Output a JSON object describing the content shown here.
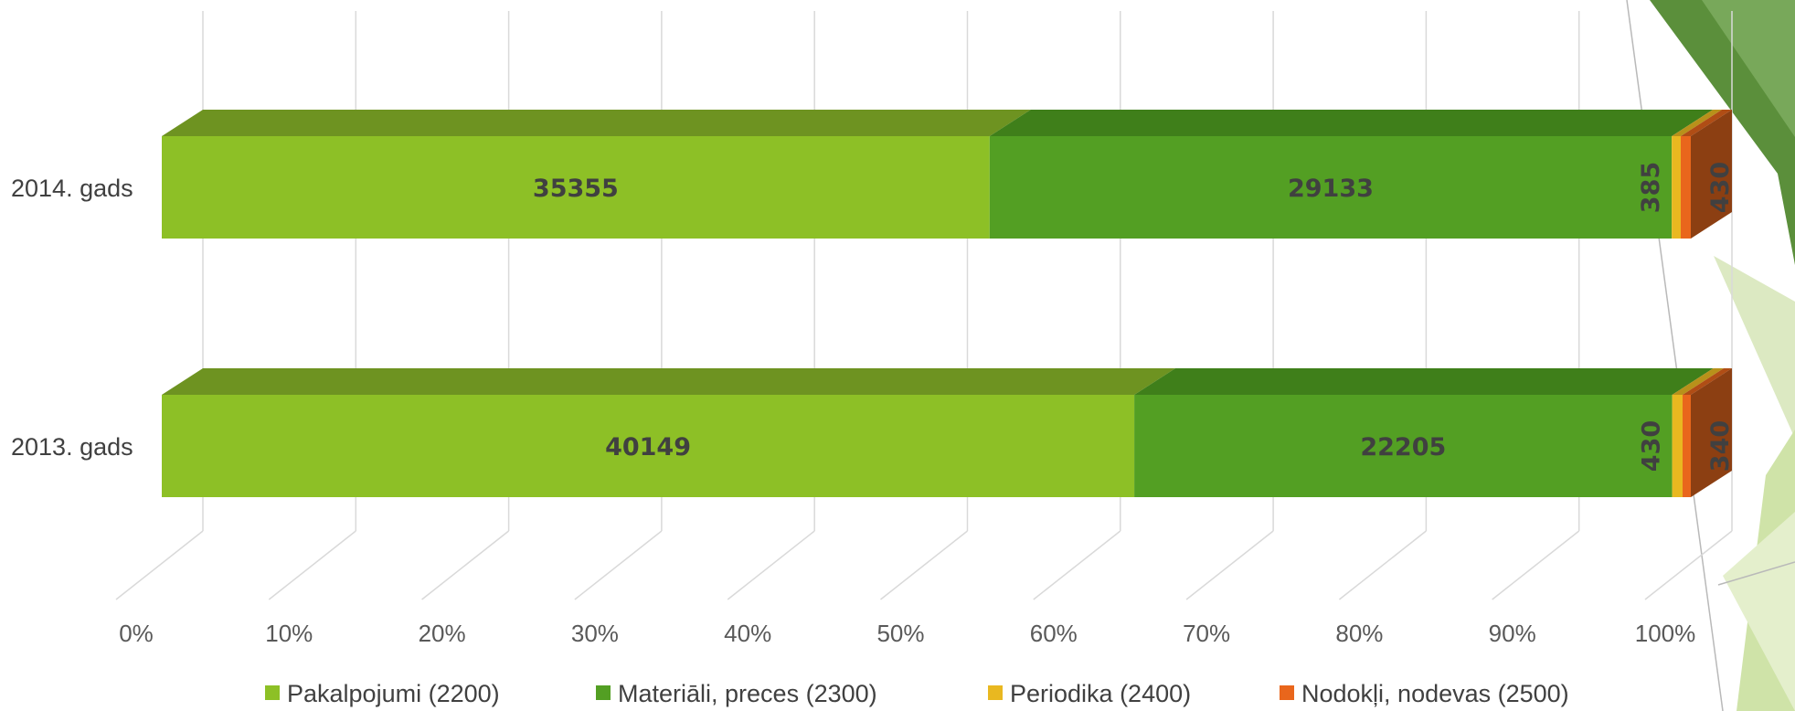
{
  "chart_data": {
    "type": "bar",
    "orientation": "horizontal",
    "stacking": "percent",
    "three_d": true,
    "categories": [
      "2014. gads",
      "2013. gads"
    ],
    "series": [
      {
        "name": "Pakalpojumi (2200)",
        "values": [
          35355,
          40149
        ],
        "color": "#8dc026",
        "top_color": "#6e9321"
      },
      {
        "name": "Materiāli, preces (2300)",
        "values": [
          29133,
          22205
        ],
        "color": "#539f23",
        "top_color": "#3f7f1a"
      },
      {
        "name": "Periodika (2400)",
        "values": [
          385,
          430
        ],
        "color": "#e9b820",
        "top_color": "#b8911a"
      },
      {
        "name": "Nodokļi, nodevas (2500)",
        "values": [
          430,
          340
        ],
        "color": "#e9661c",
        "top_color": "#b04d15"
      }
    ],
    "data_labels": [
      [
        "35355",
        "29133",
        "385",
        "430"
      ],
      [
        "40149",
        "22205",
        "430",
        "340"
      ]
    ],
    "x_ticks": [
      "0%",
      "10%",
      "20%",
      "30%",
      "40%",
      "50%",
      "60%",
      "70%",
      "80%",
      "90%",
      "100%"
    ],
    "xlim": [
      0,
      100
    ],
    "grid": true,
    "legend": "bottom",
    "title": "",
    "xlabel": "",
    "ylabel": ""
  }
}
